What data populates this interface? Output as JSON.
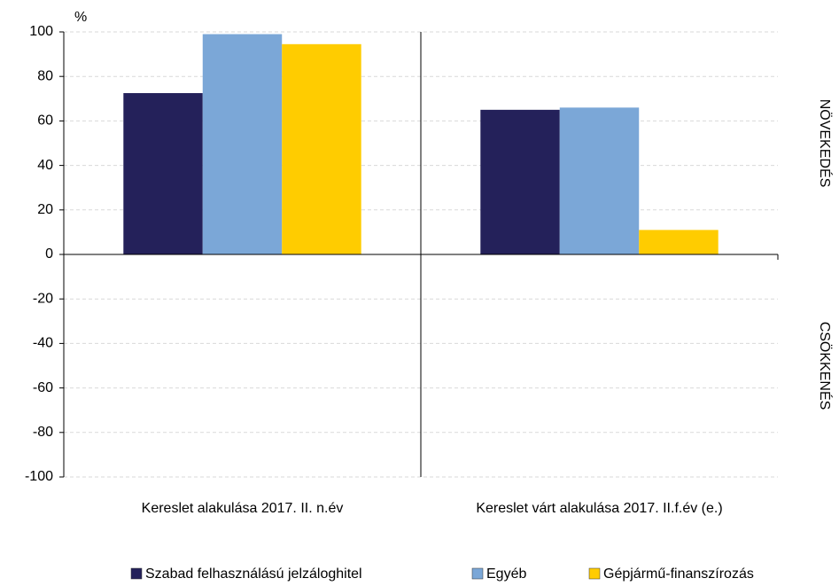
{
  "chart_data": {
    "type": "bar",
    "y_label": "%",
    "categories": [
      "Kereslet alakulása 2017. II. n.év",
      "Kereslet várt alakulása 2017. II.f.év (e.)"
    ],
    "series": [
      {
        "name": "Szabad felhasználású jelzáloghitel",
        "color": "#24215a",
        "values": [
          72.5,
          65
        ]
      },
      {
        "name": "Egyéb",
        "color": "#7ba7d7",
        "values": [
          99,
          66
        ]
      },
      {
        "name": "Gépjármű-finanszírozás",
        "color": "#ffcc00",
        "values": [
          94.5,
          11
        ]
      }
    ],
    "annotations": [
      "NÖVEKEDÉS",
      "CSÖKKENÉS"
    ],
    "ylim": [
      -100,
      100
    ],
    "yticks": [
      -100,
      -80,
      -60,
      -40,
      -20,
      0,
      20,
      40,
      60,
      80,
      100
    ],
    "grid": true
  }
}
